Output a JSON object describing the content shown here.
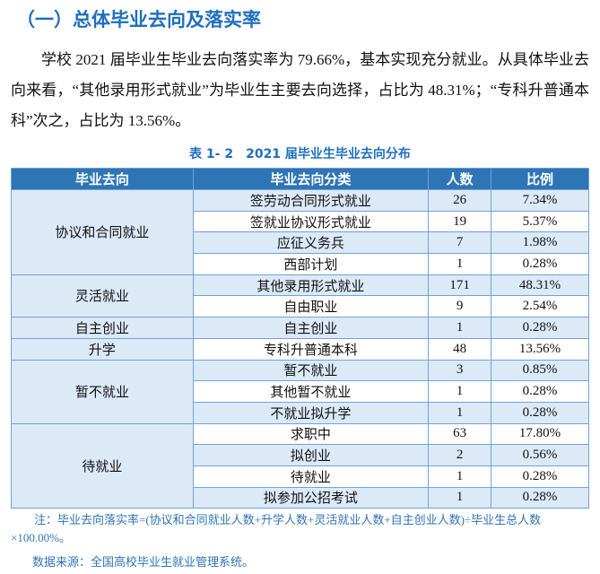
{
  "heading": "（一）总体毕业去向及落实率",
  "paragraph": "学校 2021 届毕业生毕业去向落实率为 79.66%，基本实现充分就业。从具体毕业去向来看，“其他录用形式就业”为毕业生主要去向选择，占比为 48.31%；“专科升普通本科”次之，占比为 13.56%。",
  "table": {
    "caption": "表 1- 2　2021 届毕业生毕业去向分布",
    "header": [
      "毕业去向",
      "毕业去向分类",
      "人数",
      "比例"
    ],
    "groups": [
      {
        "name": "协议和合同就业",
        "rows": [
          [
            "签劳动合同形式就业",
            "26",
            "7.34%"
          ],
          [
            "签就业协议形式就业",
            "19",
            "5.37%"
          ],
          [
            "应征义务兵",
            "7",
            "1.98%"
          ],
          [
            "西部计划",
            "1",
            "0.28%"
          ]
        ]
      },
      {
        "name": "灵活就业",
        "rows": [
          [
            "其他录用形式就业",
            "171",
            "48.31%"
          ],
          [
            "自由职业",
            "9",
            "2.54%"
          ]
        ]
      },
      {
        "name": "自主创业",
        "rows": [
          [
            "自主创业",
            "1",
            "0.28%"
          ]
        ]
      },
      {
        "name": "升学",
        "rows": [
          [
            "专科升普通本科",
            "48",
            "13.56%"
          ]
        ]
      },
      {
        "name": "暂不就业",
        "rows": [
          [
            "暂不就业",
            "3",
            "0.85%"
          ],
          [
            "其他暂不就业",
            "1",
            "0.28%"
          ],
          [
            "不就业拟升学",
            "1",
            "0.28%"
          ]
        ]
      },
      {
        "name": "待就业",
        "rows": [
          [
            "求职中",
            "63",
            "17.80%"
          ],
          [
            "拟创业",
            "2",
            "0.56%"
          ],
          [
            "待就业",
            "1",
            "0.28%"
          ],
          [
            "拟参加公招考试",
            "1",
            "0.28%"
          ]
        ]
      }
    ]
  },
  "note": "注：毕业去向落实率=(协议和合同就业人数+升学人数+灵活就业人数+自主创业人数)÷毕业生总人数×100.00%。",
  "source": "数据来源：全国高校毕业生就业管理系统。"
}
